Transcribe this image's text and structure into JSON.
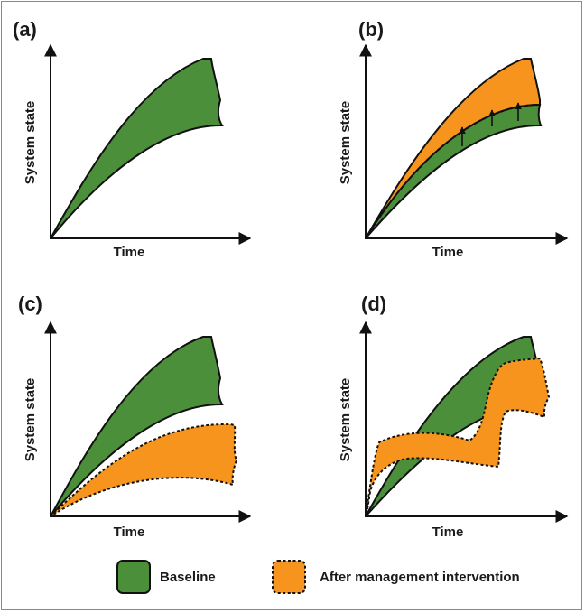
{
  "panels": [
    {
      "label": "(a)",
      "ylabel": "System state",
      "xlabel": "Time"
    },
    {
      "label": "(b)",
      "ylabel": "System state",
      "xlabel": "Time"
    },
    {
      "label": "(c)",
      "ylabel": "System state",
      "xlabel": "Time"
    },
    {
      "label": "(d)",
      "ylabel": "System state",
      "xlabel": "Time"
    }
  ],
  "legend": {
    "baseline": "Baseline",
    "after": "After management intervention"
  },
  "colors": {
    "baseline": "#4b8f3a",
    "after": "#f7941d",
    "outline": "#111111"
  }
}
